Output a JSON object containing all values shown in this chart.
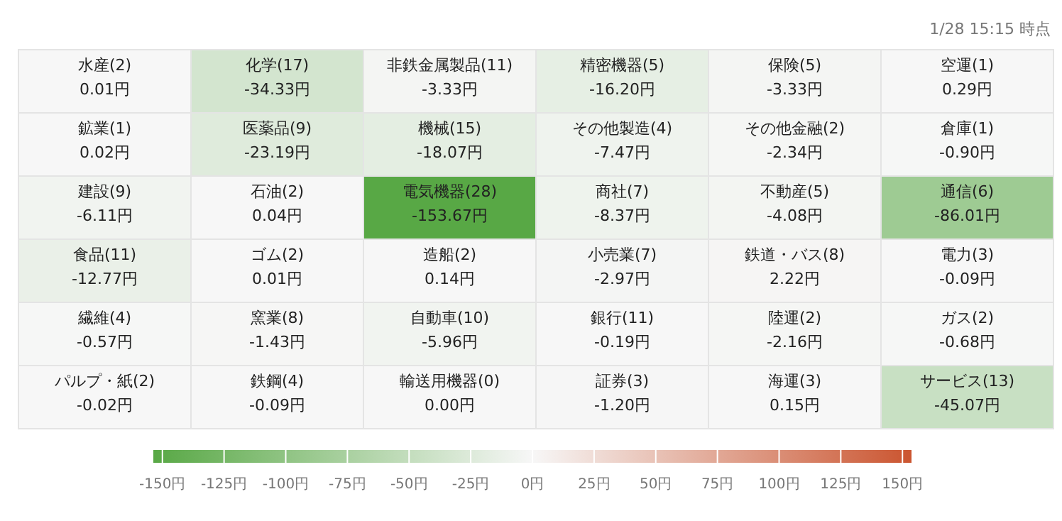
{
  "chart_data": {
    "type": "heatmap",
    "annotations": [
      "1/28 15:15 時点"
    ],
    "categories": [
      null,
      null,
      null,
      null,
      null,
      null
    ],
    "y_categories": [
      null,
      null,
      null,
      null,
      null,
      null
    ],
    "cells": [
      [
        0.01,
        -34.33,
        -3.33,
        -16.2,
        -3.33,
        0.29
      ],
      [
        0.02,
        -23.19,
        -18.07,
        -7.47,
        -2.34,
        -0.9
      ],
      [
        -6.11,
        0.04,
        -153.67,
        -8.37,
        -4.08,
        -86.01
      ],
      [
        -12.77,
        0.01,
        0.14,
        -2.97,
        2.22,
        -0.09
      ],
      [
        -0.57,
        -1.43,
        -5.96,
        -0.19,
        -2.16,
        -0.68
      ],
      [
        -0.02,
        -0.09,
        0.0,
        -1.2,
        0.15,
        -45.07
      ]
    ],
    "cell_labels": [
      [
        "水産(2)\n0.01円",
        "化学(17)\n-34.33円",
        "非鉄金属製品(11)\n-3.33円",
        "精密機器(5)\n-16.20円",
        "保険(5)\n-3.33円",
        "空運(1)\n0.29円"
      ],
      [
        "鉱業(1)\n0.02円",
        "医薬品(9)\n-23.19円",
        "機械(15)\n-18.07円",
        "その他製造(4)\n-7.47円",
        "その他金融(2)\n-2.34円",
        "倉庫(1)\n-0.90円"
      ],
      [
        "建設(9)\n-6.11円",
        "石油(2)\n0.04円",
        "電気機器(28)\n-153.67円",
        "商社(7)\n-8.37円",
        "不動産(5)\n-4.08円",
        "通信(6)\n-86.01円"
      ],
      [
        "食品(11)\n-12.77円",
        "ゴム(2)\n0.01円",
        "造船(2)\n0.14円",
        "小売業(7)\n-2.97円",
        "鉄道・バス(8)\n2.22円",
        "電力(3)\n-0.09円"
      ],
      [
        "繊維(4)\n-0.57円",
        "窯業(8)\n-1.43円",
        "自動車(10)\n-5.96円",
        "銀行(11)\n-0.19円",
        "陸運(2)\n-2.16円",
        "ガス(2)\n-0.68円"
      ],
      [
        "パルプ・紙(2)\n-0.02円",
        "鉄鋼(4)\n-0.09円",
        "輸送用機器(0)\n0.00円",
        "証券(3)\n-1.20円",
        "海運(3)\n0.15円",
        "サービス(13)\n-45.07円"
      ]
    ],
    "clim": [
      -153.67,
      153.67
    ],
    "cticks": [
      {
        "value": -150,
        "label": "-150円"
      },
      {
        "value": -125,
        "label": "-125円"
      },
      {
        "value": -100,
        "label": "-100円"
      },
      {
        "value": -75,
        "label": "-75円"
      },
      {
        "value": -50,
        "label": "-50円"
      },
      {
        "value": -25,
        "label": "-25円"
      },
      {
        "value": 0,
        "label": "0円"
      },
      {
        "value": 25,
        "label": "25円"
      },
      {
        "value": 50,
        "label": "50円"
      },
      {
        "value": 75,
        "label": "75円"
      },
      {
        "value": 100,
        "label": "100円"
      },
      {
        "value": 125,
        "label": "125円"
      },
      {
        "value": 150,
        "label": "150円"
      }
    ]
  }
}
